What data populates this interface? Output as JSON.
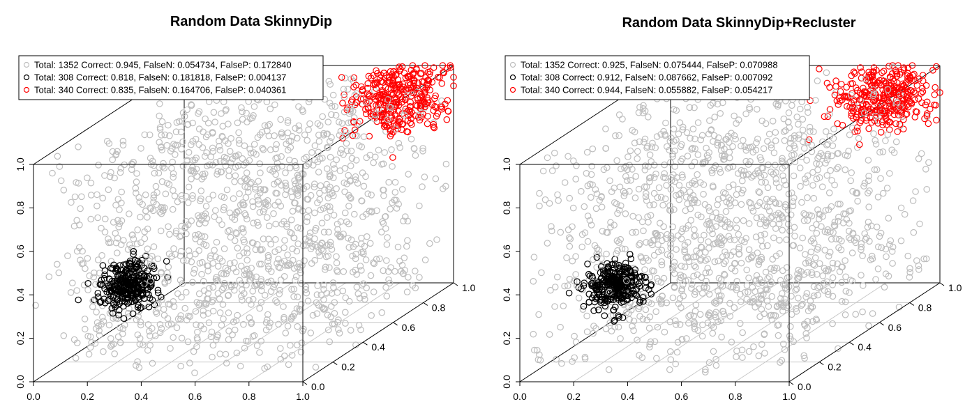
{
  "chart_data": [
    {
      "type": "scatter3d",
      "title": "Random Data SkinnyDip",
      "xlim": [
        0.0,
        1.0
      ],
      "ylim": [
        0.0,
        1.0
      ],
      "zlim": [
        0.0,
        1.0
      ],
      "x_ticks": [
        "0.0",
        "0.2",
        "0.4",
        "0.6",
        "0.8",
        "1.0"
      ],
      "y_ticks": [
        "0.0",
        "0.2",
        "0.4",
        "0.6",
        "0.8",
        "1.0"
      ],
      "z_ticks": [
        "0.0",
        "0.2",
        "0.4",
        "0.6",
        "0.8",
        "1.0"
      ],
      "grid": "on bottom plane",
      "legend_position": "top-left",
      "series": [
        {
          "color": "#bebebe",
          "legend": "Total: 1352 Correct: 0.945, FalseN: 0.054734, FalseP: 0.172840",
          "count": 1352,
          "distribution": "uniform",
          "range": [
            0.0,
            1.0
          ]
        },
        {
          "color": "#000000",
          "legend": "Total: 308 Correct: 0.818, FalseN: 0.181818, FalseP: 0.004137",
          "count": 308,
          "distribution": "gaussian cluster",
          "center": [
            0.3,
            0.1,
            0.4
          ],
          "spread": 0.05
        },
        {
          "color": "#ff0000",
          "legend": "Total: 340 Correct: 0.835, FalseN: 0.164706, FalseP: 0.040361",
          "count": 340,
          "distribution": "gaussian cluster",
          "center": [
            0.85,
            0.9,
            0.9
          ],
          "spread": 0.08
        }
      ]
    },
    {
      "type": "scatter3d",
      "title": "Random Data SkinnyDip+Recluster",
      "xlim": [
        0.0,
        1.0
      ],
      "ylim": [
        0.0,
        1.0
      ],
      "zlim": [
        0.0,
        1.0
      ],
      "x_ticks": [
        "0.0",
        "0.2",
        "0.4",
        "0.6",
        "0.8",
        "1.0"
      ],
      "y_ticks": [
        "0.0",
        "0.2",
        "0.4",
        "0.6",
        "0.8",
        "1.0"
      ],
      "z_ticks": [
        "0.0",
        "0.2",
        "0.4",
        "0.6",
        "0.8",
        "1.0"
      ],
      "grid": "on bottom plane",
      "legend_position": "top-left",
      "series": [
        {
          "color": "#bebebe",
          "legend": "Total: 1352 Correct: 0.925, FalseN: 0.075444, FalseP: 0.070988",
          "count": 1352,
          "distribution": "uniform",
          "range": [
            0.0,
            1.0
          ]
        },
        {
          "color": "#000000",
          "legend": "Total: 308 Correct: 0.912, FalseN: 0.087662, FalseP: 0.007092",
          "count": 308,
          "distribution": "gaussian cluster",
          "center": [
            0.3,
            0.1,
            0.4
          ],
          "spread": 0.05
        },
        {
          "color": "#ff0000",
          "legend": "Total: 340 Correct: 0.944, FalseN: 0.055882, FalseP: 0.054217",
          "count": 340,
          "distribution": "gaussian cluster",
          "center": [
            0.85,
            0.9,
            0.9
          ],
          "spread": 0.08
        }
      ]
    }
  ]
}
